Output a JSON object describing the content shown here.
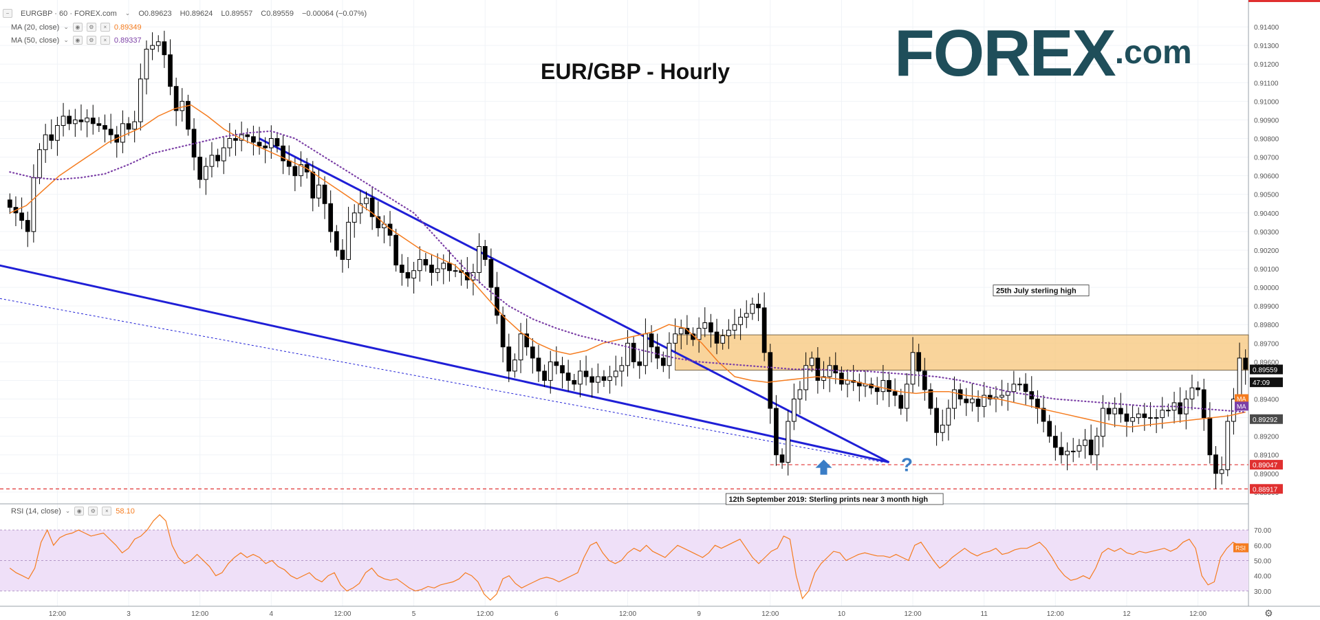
{
  "header": {
    "symbol_line": "EURGBP · 60 · FOREX.com",
    "open": "O0.89623",
    "high": "H0.89624",
    "low": "L0.89557",
    "close": "C0.89559",
    "change": "−0.00064 (−0.07%)",
    "ma20_label": "MA (20, close)",
    "ma20_value": "0.89349",
    "ma50_label": "MA (50, close)",
    "ma50_value": "0.89337",
    "rsi_label": "RSI (14, close)",
    "rsi_value": "58.10"
  },
  "brand": {
    "name": "FOREX",
    "suffix": ".com"
  },
  "colors": {
    "up_candle": "#ffffff",
    "down_candle": "#000000",
    "ma20": "#f57c1f",
    "ma50": "#7b3fa6",
    "trendline": "#1f1fd6",
    "zone": "#f7c57a",
    "rsi_band": "#efe0f8",
    "rsi_line": "#f57c1f",
    "level_red": "#e03030",
    "arrow": "#3a7dc6"
  },
  "chart_data": [
    {
      "type": "candlestick",
      "title": "EUR/GBP - Hourly",
      "y_axis_ticks": [
        "0.91400",
        "0.91300",
        "0.91200",
        "0.91100",
        "0.91000",
        "0.90900",
        "0.90800",
        "0.90700",
        "0.90600",
        "0.90500",
        "0.90400",
        "0.90300",
        "0.90200",
        "0.90100",
        "0.90000",
        "0.89900",
        "0.89800",
        "0.89700",
        "0.89600",
        "0.89500",
        "0.89400",
        "0.89300",
        "0.89200",
        "0.89100",
        "0.89000",
        "0.88900"
      ],
      "ylim": [
        0.8887,
        0.915
      ],
      "x_axis_ticks": [
        {
          "label": "12:00",
          "bar": 8
        },
        {
          "label": "3",
          "bar": 20
        },
        {
          "label": "12:00",
          "bar": 32
        },
        {
          "label": "4",
          "bar": 44
        },
        {
          "label": "12:00",
          "bar": 56
        },
        {
          "label": "5",
          "bar": 68
        },
        {
          "label": "12:00",
          "bar": 80
        },
        {
          "label": "6",
          "bar": 92
        },
        {
          "label": "12:00",
          "bar": 104
        },
        {
          "label": "9",
          "bar": 116
        },
        {
          "label": "12:00",
          "bar": 128
        },
        {
          "label": "10",
          "bar": 140
        },
        {
          "label": "12:00",
          "bar": 152
        },
        {
          "label": "11",
          "bar": 164
        },
        {
          "label": "12:00",
          "bar": 176
        },
        {
          "label": "12",
          "bar": 188
        },
        {
          "label": "12:00",
          "bar": 200
        }
      ],
      "close_path": [
        0.9043,
        0.904,
        0.9036,
        0.903,
        0.9059,
        0.9074,
        0.9082,
        0.9079,
        0.9087,
        0.9092,
        0.9088,
        0.909,
        0.9089,
        0.9091,
        0.9088,
        0.9087,
        0.9085,
        0.9082,
        0.9078,
        0.9088,
        0.9085,
        0.9089,
        0.9112,
        0.9128,
        0.913,
        0.9132,
        0.9125,
        0.9108,
        0.9095,
        0.91,
        0.9085,
        0.907,
        0.9058,
        0.9065,
        0.9071,
        0.9068,
        0.9075,
        0.908,
        0.9079,
        0.9082,
        0.9081,
        0.9078,
        0.9076,
        0.9075,
        0.908,
        0.9076,
        0.9068,
        0.9065,
        0.906,
        0.9066,
        0.9062,
        0.9048,
        0.9055,
        0.9045,
        0.903,
        0.902,
        0.9015,
        0.9035,
        0.904,
        0.9045,
        0.9048,
        0.9038,
        0.9032,
        0.9034,
        0.9028,
        0.9012,
        0.9008,
        0.9005,
        0.9009,
        0.9015,
        0.9012,
        0.9008,
        0.901,
        0.9013,
        0.9009,
        0.9009,
        0.9008,
        0.9004,
        0.9008,
        0.9022,
        0.9015,
        0.9,
        0.8985,
        0.8968,
        0.8955,
        0.8961,
        0.8975,
        0.8968,
        0.8962,
        0.8955,
        0.895,
        0.896,
        0.8958,
        0.8954,
        0.895,
        0.8948,
        0.8955,
        0.8952,
        0.8949,
        0.8952,
        0.895,
        0.8952,
        0.8955,
        0.8958,
        0.897,
        0.896,
        0.8958,
        0.8975,
        0.8968,
        0.8962,
        0.8958,
        0.897,
        0.8975,
        0.8978,
        0.8975,
        0.8972,
        0.8978,
        0.8981,
        0.8976,
        0.897,
        0.8974,
        0.8977,
        0.898,
        0.8984,
        0.8986,
        0.8991,
        0.8989,
        0.8965,
        0.8935,
        0.891,
        0.8906,
        0.8928,
        0.894,
        0.8945,
        0.8958,
        0.8962,
        0.895,
        0.8952,
        0.8958,
        0.8954,
        0.8948,
        0.895,
        0.8949,
        0.8947,
        0.8948,
        0.8946,
        0.8944,
        0.895,
        0.8944,
        0.8942,
        0.8935,
        0.8948,
        0.8965,
        0.8955,
        0.8945,
        0.8935,
        0.8922,
        0.8926,
        0.8935,
        0.8945,
        0.894,
        0.8938,
        0.894,
        0.8936,
        0.8942,
        0.894,
        0.8941,
        0.8942,
        0.8944,
        0.8948,
        0.8948,
        0.8944,
        0.894,
        0.8935,
        0.8928,
        0.892,
        0.8914,
        0.891,
        0.8912,
        0.8912,
        0.8915,
        0.8918,
        0.891,
        0.892,
        0.8935,
        0.8932,
        0.8935,
        0.8932,
        0.8928,
        0.893,
        0.8932,
        0.893,
        0.893,
        0.893,
        0.8934,
        0.8934,
        0.8938,
        0.8932,
        0.894,
        0.8946,
        0.8945,
        0.893,
        0.891,
        0.89,
        0.8902,
        0.8928,
        0.894,
        0.8962,
        0.8956
      ],
      "ma20_path": [
        0.904,
        0.9044,
        0.9052,
        0.906,
        0.9066,
        0.9072,
        0.9078,
        0.9082,
        0.9086,
        0.9092,
        0.9096,
        0.9098,
        0.9092,
        0.9085,
        0.908,
        0.9076,
        0.9072,
        0.9068,
        0.9064,
        0.9058,
        0.9052,
        0.9046,
        0.904,
        0.9032,
        0.9026,
        0.902,
        0.9016,
        0.9012,
        0.9004,
        0.8994,
        0.8984,
        0.8976,
        0.897,
        0.8966,
        0.8964,
        0.8966,
        0.897,
        0.8972,
        0.8974,
        0.8976,
        0.898,
        0.8978,
        0.897,
        0.896,
        0.8952,
        0.895,
        0.8949,
        0.895,
        0.8951,
        0.8952,
        0.8951,
        0.895,
        0.8948,
        0.8946,
        0.8944,
        0.8943,
        0.8944,
        0.8944,
        0.8942,
        0.8941,
        0.894,
        0.8938,
        0.8936,
        0.8934,
        0.8932,
        0.893,
        0.8928,
        0.8926,
        0.8925,
        0.8926,
        0.8927,
        0.8928,
        0.8929,
        0.893,
        0.8931,
        0.8933
      ],
      "ma50_path": [
        0.9062,
        0.9059,
        0.9058,
        0.9059,
        0.9061,
        0.9066,
        0.9072,
        0.9075,
        0.9078,
        0.9081,
        0.9083,
        0.9084,
        0.908,
        0.9072,
        0.9064,
        0.9056,
        0.9048,
        0.904,
        0.9026,
        0.9012,
        0.9,
        0.899,
        0.8983,
        0.8978,
        0.8974,
        0.8971,
        0.8968,
        0.8965,
        0.8962,
        0.896,
        0.8959,
        0.8958,
        0.8957,
        0.8956,
        0.8956,
        0.8955,
        0.8955,
        0.8954,
        0.8953,
        0.8952,
        0.895,
        0.8947,
        0.8944,
        0.8942,
        0.894,
        0.8939,
        0.8938,
        0.8937,
        0.8936,
        0.8936,
        0.8935,
        0.8934,
        0.8933
      ],
      "resistance_zone": {
        "from": 0.89555,
        "to": 0.89745
      },
      "trendlines": [
        {
          "from": [
            42,
            0.908
          ],
          "to": [
            148,
            0.8906
          ]
        },
        {
          "from": [
            -2,
            0.9012
          ],
          "to": [
            148,
            0.8906
          ]
        }
      ],
      "price_labels": [
        {
          "value": 0.89559,
          "text": "0.89559",
          "style": "current"
        },
        {
          "value": 0.8949,
          "text": "47:09",
          "style": "countdown"
        },
        {
          "value": 0.89292,
          "text": "0.89292",
          "style": "gray"
        },
        {
          "value": 0.89047,
          "text": "0.89047",
          "style": "red"
        },
        {
          "value": 0.88917,
          "text": "0.88917",
          "style": "red"
        }
      ],
      "ma_badges": [
        {
          "value": 0.894,
          "text": "MA",
          "color": "#f57c1f"
        },
        {
          "value": 0.8936,
          "text": "MA",
          "color": "#7b3fa6"
        }
      ],
      "levels": [
        {
          "value": 0.89047,
          "label": ""
        },
        {
          "value": 0.88917,
          "label": "25th July sterling high"
        }
      ],
      "annotations": [
        {
          "type": "arrow",
          "bar": 137,
          "value": 0.8903
        },
        {
          "type": "question",
          "bar": 151,
          "value": 0.8905,
          "text": "?"
        },
        {
          "type": "label",
          "text": "12th September 2019: Sterling prints near 3 month high",
          "bar": 121
        },
        {
          "type": "label",
          "text": "25th July sterling high",
          "bar": 166
        }
      ]
    },
    {
      "type": "line",
      "title": "RSI (14, close)",
      "y_axis_ticks": [
        "70.00",
        "60.00",
        "50.00",
        "40.00",
        "30.00"
      ],
      "ylim": [
        20,
        84
      ],
      "band": [
        30,
        70
      ],
      "badge": "RSI",
      "values": [
        45,
        42,
        40,
        38,
        45,
        62,
        70,
        60,
        65,
        67,
        68,
        70,
        68,
        66,
        67,
        68,
        64,
        60,
        55,
        58,
        64,
        66,
        70,
        76,
        80,
        76,
        60,
        52,
        48,
        50,
        54,
        50,
        46,
        40,
        42,
        48,
        52,
        55,
        52,
        54,
        52,
        48,
        50,
        46,
        44,
        40,
        38,
        40,
        42,
        38,
        36,
        40,
        42,
        34,
        30,
        32,
        35,
        42,
        45,
        40,
        38,
        37,
        38,
        35,
        32,
        30,
        31,
        33,
        32,
        34,
        35,
        36,
        38,
        42,
        40,
        36,
        28,
        24,
        28,
        38,
        40,
        35,
        32,
        34,
        36,
        38,
        39,
        38,
        36,
        38,
        40,
        42,
        52,
        60,
        62,
        55,
        50,
        48,
        50,
        55,
        58,
        56,
        60,
        56,
        54,
        52,
        56,
        60,
        58,
        56,
        54,
        52,
        55,
        60,
        58,
        60,
        62,
        64,
        58,
        52,
        48,
        52,
        56,
        58,
        66,
        64,
        40,
        25,
        30,
        42,
        48,
        52,
        56,
        55,
        50,
        52,
        54,
        55,
        54,
        53,
        53,
        52,
        54,
        52,
        50,
        60,
        62,
        56,
        50,
        45,
        48,
        52,
        55,
        58,
        55,
        53,
        55,
        56,
        58,
        54,
        55,
        57,
        58,
        58,
        60,
        62,
        58,
        52,
        45,
        40,
        37,
        38,
        40,
        38,
        45,
        55,
        58,
        56,
        58,
        55,
        54,
        56,
        55,
        56,
        57,
        58,
        56,
        58,
        62,
        64,
        58,
        40,
        34,
        36,
        52,
        58,
        62,
        60,
        58
      ]
    }
  ]
}
